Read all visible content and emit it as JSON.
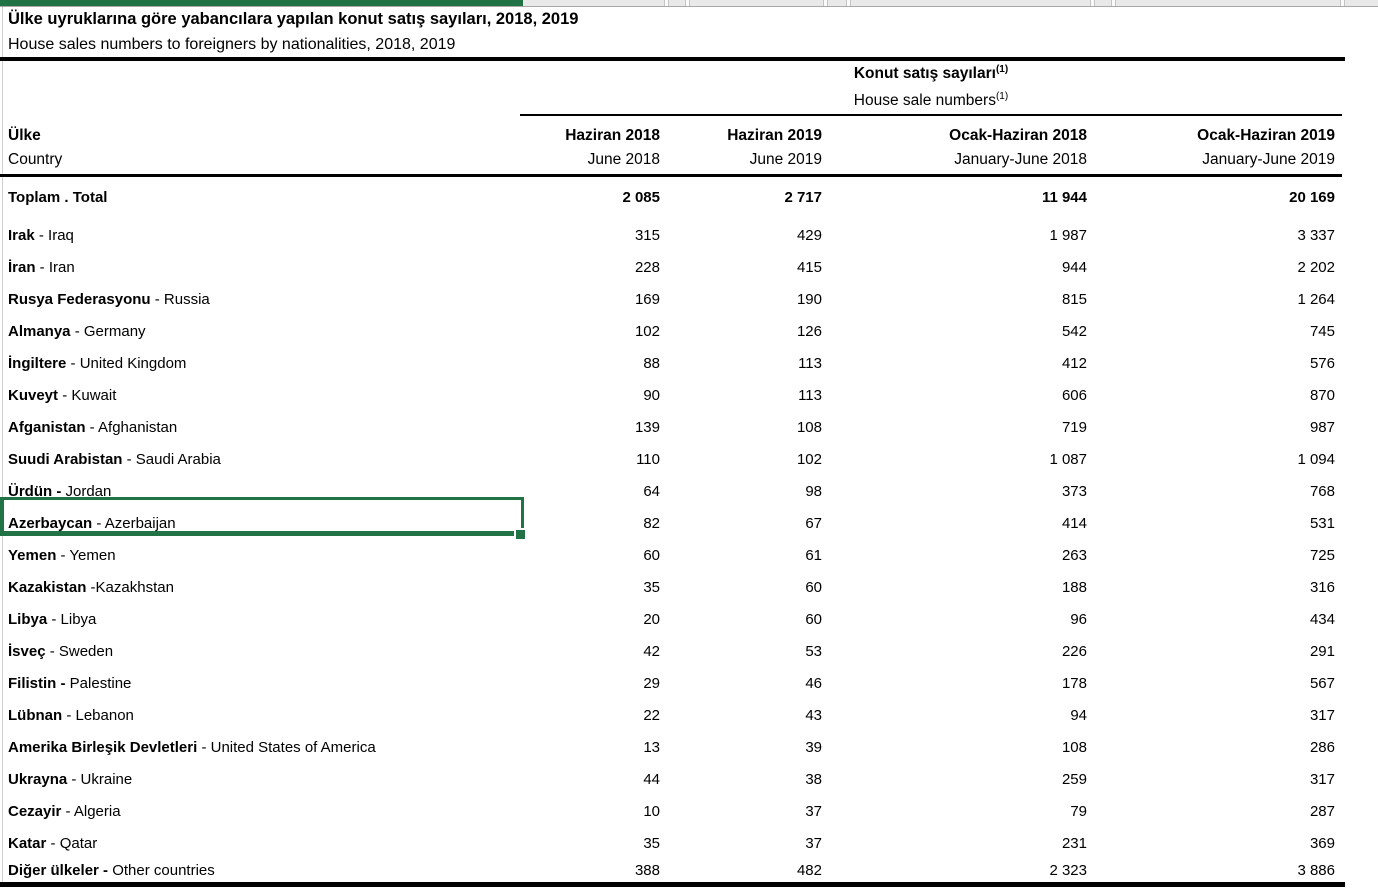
{
  "app": {
    "selection_color": "#217346",
    "selected_cell": "Azerbaycan - Azerbaijan"
  },
  "title": {
    "tr": "Ülke uyruklarına göre yabancılara yapılan konut satış sayıları, 2018, 2019",
    "en": "House sales numbers to foreigners by nationalities, 2018, 2019"
  },
  "table": {
    "group_header": {
      "tr": "Konut satış sayıları",
      "en": "House sale numbers",
      "footnote_marker": "(1)"
    },
    "row_header": {
      "tr": "Ülke",
      "en": "Country"
    },
    "columns": [
      {
        "tr": "Haziran 2018",
        "en": "June 2018"
      },
      {
        "tr": "Haziran 2019",
        "en": "June 2019"
      },
      {
        "tr": "Ocak-Haziran 2018",
        "en": "January-June 2018"
      },
      {
        "tr": "Ocak-Haziran 2019",
        "en": "January-June 2019"
      }
    ],
    "rows": [
      {
        "bold": "Toplam",
        "rest": " . Total",
        "values": [
          "2 085",
          "2 717",
          "11 944",
          "20 169"
        ],
        "emphasis": true
      },
      {
        "bold": "Irak",
        "rest": " - Iraq",
        "values": [
          "315",
          "429",
          "1 987",
          "3 337"
        ]
      },
      {
        "bold": "İran",
        "rest": " - Iran",
        "values": [
          "228",
          "415",
          "944",
          "2 202"
        ]
      },
      {
        "bold": "Rusya Federasyonu",
        "rest": " - Russia",
        "values": [
          "169",
          "190",
          "815",
          "1 264"
        ]
      },
      {
        "bold": "Almanya",
        "rest": " - Germany",
        "values": [
          "102",
          "126",
          "542",
          "745"
        ]
      },
      {
        "bold": "İngiltere",
        "rest": " - United Kingdom",
        "values": [
          "88",
          "113",
          "412",
          "576"
        ]
      },
      {
        "bold": "Kuveyt",
        "rest": " - Kuwait",
        "values": [
          "90",
          "113",
          "606",
          "870"
        ]
      },
      {
        "bold": "Afganistan",
        "rest": " - Afghanistan",
        "values": [
          "139",
          "108",
          "719",
          "987"
        ]
      },
      {
        "bold": "Suudi Arabistan",
        "rest": " - Saudi Arabia",
        "values": [
          "110",
          "102",
          "1 087",
          "1 094"
        ]
      },
      {
        "bold": "Ürdün -",
        "rest": " Jordan",
        "values": [
          "64",
          "98",
          "373",
          "768"
        ]
      },
      {
        "bold": "Azerbaycan",
        "rest": " - Azerbaijan",
        "values": [
          "82",
          "67",
          "414",
          "531"
        ],
        "selected": true
      },
      {
        "bold": "Yemen",
        "rest": " - Yemen",
        "values": [
          "60",
          "61",
          "263",
          "725"
        ]
      },
      {
        "bold": "Kazakistan",
        "rest": " -Kazakhstan",
        "values": [
          "35",
          "60",
          "188",
          "316"
        ]
      },
      {
        "bold": "Libya",
        "rest": " - Libya",
        "values": [
          "20",
          "60",
          "96",
          "434"
        ]
      },
      {
        "bold": "İsveç",
        "rest": " - Sweden",
        "values": [
          "42",
          "53",
          "226",
          "291"
        ]
      },
      {
        "bold": "Filistin -",
        "rest": " Palestine",
        "values": [
          "29",
          "46",
          "178",
          "567"
        ]
      },
      {
        "bold": "Lübnan",
        "rest": " - Lebanon",
        "values": [
          "22",
          "43",
          "94",
          "317"
        ]
      },
      {
        "bold": "Amerika Birleşik Devletleri",
        "rest": " - United States of America",
        "values": [
          "13",
          "39",
          "108",
          "286"
        ]
      },
      {
        "bold": "Ukrayna",
        "rest": " - Ukraine",
        "values": [
          "44",
          "38",
          "259",
          "317"
        ]
      },
      {
        "bold": "Cezayir",
        "rest": " - Algeria",
        "values": [
          "10",
          "37",
          "79",
          "287"
        ]
      },
      {
        "bold": "Katar",
        "rest": " - Qatar",
        "values": [
          "35",
          "37",
          "231",
          "369"
        ]
      },
      {
        "bold": "Diğer ülkeler -",
        "rest": " Other countries",
        "values": [
          "388",
          "482",
          "2 323",
          "3 886"
        ]
      }
    ]
  }
}
